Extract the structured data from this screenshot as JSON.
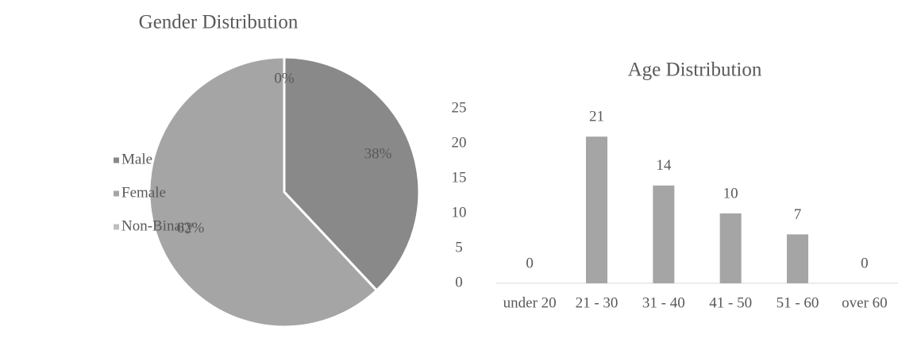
{
  "chart_data": [
    {
      "type": "pie",
      "title": "Gender Distribution",
      "categories": [
        "Male",
        "Female",
        "Non-Binary"
      ],
      "values": [
        38,
        62,
        0
      ],
      "value_labels": [
        "38%",
        "62%",
        "0%"
      ],
      "colors": [
        "#898989",
        "#a5a5a5",
        "#bfbfbf"
      ],
      "legend": "left"
    },
    {
      "type": "bar",
      "title": "Age Distribution",
      "categories": [
        "under 20",
        "21 - 30",
        "31 - 40",
        "41 - 50",
        "51 - 60",
        "over 60"
      ],
      "values": [
        0,
        21,
        14,
        10,
        7,
        0
      ],
      "color": "#a5a5a5",
      "ylim": [
        0,
        25
      ],
      "yticks": [
        0,
        5,
        10,
        15,
        20,
        25
      ],
      "grid": false
    }
  ]
}
